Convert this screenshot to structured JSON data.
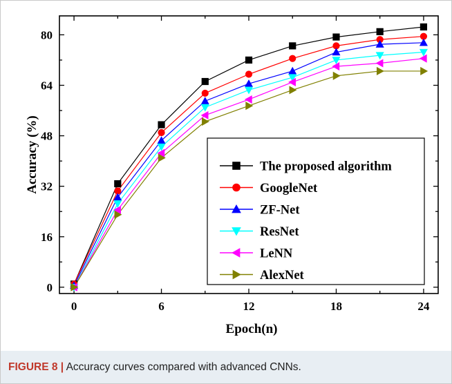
{
  "caption": {
    "label": "FIGURE 8 |",
    "text": "Accuracy curves compared with advanced CNNs."
  },
  "chart_data": {
    "type": "line",
    "title": "",
    "xlabel": "Epoch(n)",
    "ylabel": "Accuracy (%)",
    "xlim": [
      -1,
      25
    ],
    "ylim": [
      -2,
      86
    ],
    "xticks": [
      0,
      6,
      12,
      18,
      24
    ],
    "yticks": [
      0,
      16,
      32,
      48,
      64,
      80
    ],
    "grid": false,
    "legend_position": "lower-right",
    "x": [
      0,
      3,
      6,
      9,
      12,
      15,
      18,
      21,
      24
    ],
    "series": [
      {
        "name": "The proposed algorithm",
        "marker": "square",
        "color": "#000000",
        "values": [
          1,
          32.8,
          51.5,
          65.2,
          72,
          76.5,
          79.3,
          81,
          82.5
        ]
      },
      {
        "name": "GoogleNet",
        "marker": "circle",
        "color": "#ff0000",
        "values": [
          1,
          30.5,
          49,
          61.5,
          67.5,
          72.5,
          76.5,
          78.5,
          79.5
        ]
      },
      {
        "name": "ZF-Net",
        "marker": "triangle-up",
        "color": "#0000ff",
        "values": [
          0.5,
          28.5,
          46.5,
          59,
          64.5,
          68.5,
          74.5,
          77,
          77.5
        ]
      },
      {
        "name": "ResNet",
        "marker": "triangle-down",
        "color": "#00ffff",
        "values": [
          0,
          26.5,
          44.5,
          57,
          62.5,
          66.5,
          72,
          73.5,
          74.5
        ]
      },
      {
        "name": "LeNN",
        "marker": "triangle-left",
        "color": "#ff00ff",
        "values": [
          0,
          24.5,
          42.5,
          54.5,
          59.5,
          65,
          70,
          71,
          72.5
        ]
      },
      {
        "name": "AlexNet",
        "marker": "triangle-right",
        "color": "#808000",
        "values": [
          0,
          23,
          41,
          52.5,
          57.5,
          62.5,
          67,
          68.5,
          68.5
        ]
      }
    ]
  }
}
